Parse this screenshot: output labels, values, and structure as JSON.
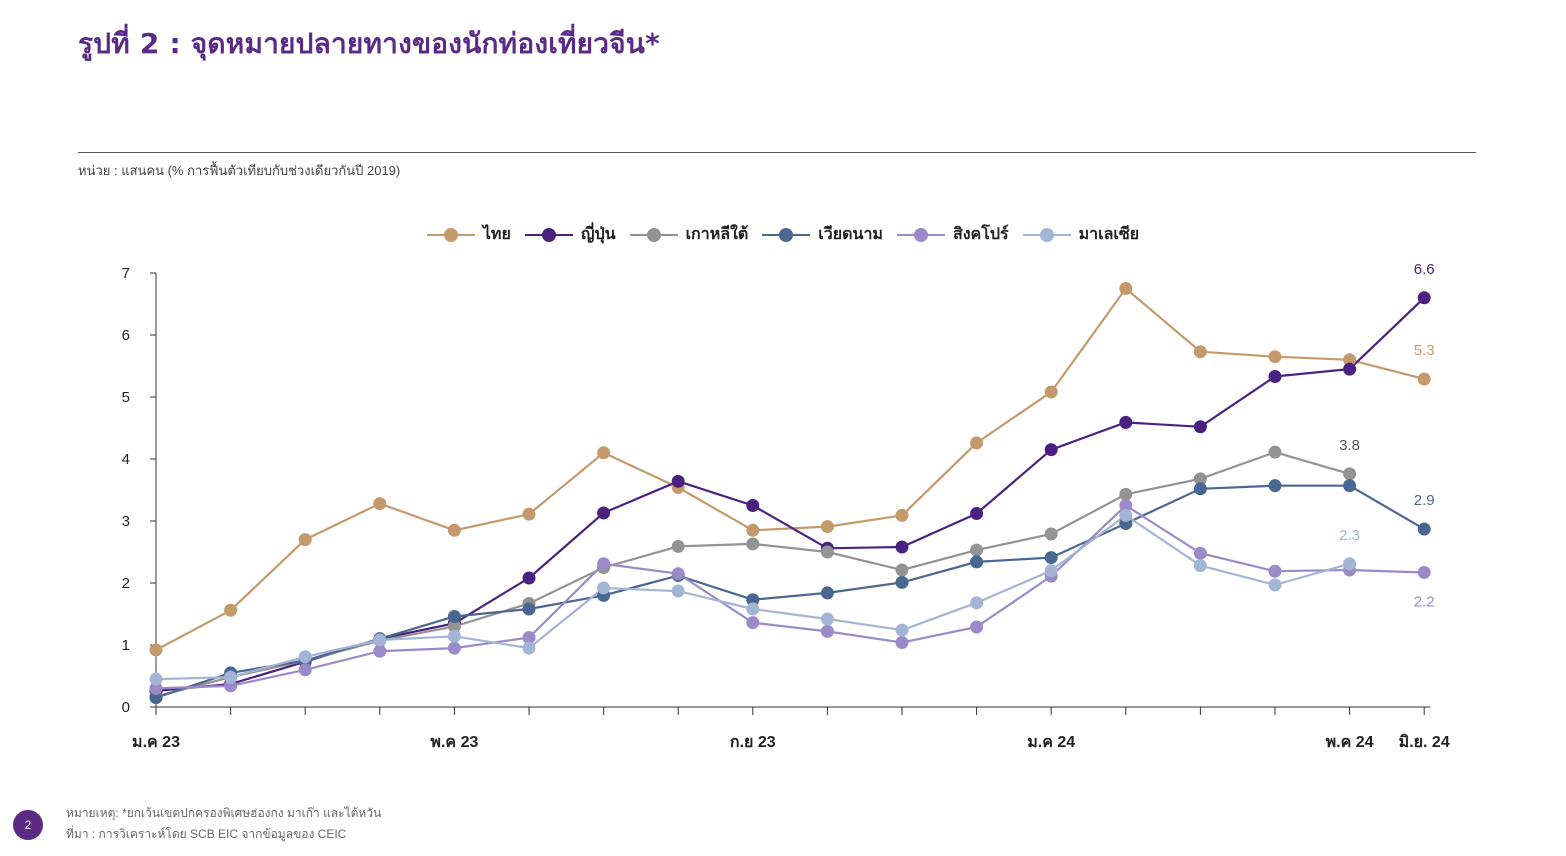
{
  "title": "รูปที่ 2 : จุดหมายปลายทางของนักท่องเที่ยวจีน*",
  "unit_label": "หน่วย : แสนคน (% การฟื้นตัวเทียบกับช่วงเดียวกันปี 2019)",
  "page_number": "2",
  "footnote": "หมายเหตุ: *ยกเว้นเขตปกครองพิเศษฮ่องกง มาเก๊า และไต้หวัน",
  "source": "ที่มา : การวิเคราะห์โดย SCB EIC จากข้อมูลของ CEIC",
  "chart_data": {
    "type": "line",
    "title": "",
    "xlabel": "",
    "ylabel": "",
    "ylim": [
      0,
      7
    ],
    "yticks": [
      "0",
      "1",
      "2",
      "3",
      "4",
      "5",
      "6",
      "7"
    ],
    "grid": false,
    "legend_position": "top",
    "x": [
      "2023-01",
      "2023-02",
      "2023-03",
      "2023-04",
      "2023-05",
      "2023-06",
      "2023-07",
      "2023-08",
      "2023-09",
      "2023-10",
      "2023-11",
      "2023-12",
      "2024-01",
      "2024-02",
      "2024-03",
      "2024-04",
      "2024-05",
      "2024-06"
    ],
    "x_tick_labels": [
      {
        "index": 0,
        "label": "ม.ค 23"
      },
      {
        "index": 4,
        "label": "พ.ค 23"
      },
      {
        "index": 8,
        "label": "ก.ย 23"
      },
      {
        "index": 12,
        "label": "ม.ค 24"
      },
      {
        "index": 16,
        "label": "พ.ค 24"
      },
      {
        "index": 17,
        "label": "มิ.ย. 24"
      }
    ],
    "series": [
      {
        "name": "ไทย",
        "color": "#c49a6c",
        "values": [
          0.92,
          1.56,
          2.7,
          3.28,
          2.85,
          3.11,
          4.1,
          3.54,
          2.85,
          2.91,
          3.09,
          4.26,
          5.08,
          6.75,
          5.73,
          5.65,
          5.6,
          5.29
        ]
      },
      {
        "name": "ญี่ปุ่น",
        "color": "#4a2180",
        "values": [
          0.26,
          0.37,
          0.73,
          1.1,
          1.35,
          2.08,
          3.13,
          3.64,
          3.25,
          2.56,
          2.58,
          3.12,
          4.15,
          4.59,
          4.52,
          5.33,
          5.45,
          6.6
        ]
      },
      {
        "name": "เกาหลีใต้",
        "color": "#939393",
        "values": [
          0.17,
          0.48,
          0.75,
          1.07,
          1.3,
          1.67,
          2.25,
          2.59,
          2.63,
          2.5,
          2.21,
          2.53,
          2.79,
          3.43,
          3.68,
          4.11,
          3.76,
          null
        ]
      },
      {
        "name": "เวียดนาม",
        "color": "#4a6791",
        "values": [
          0.15,
          0.55,
          0.75,
          1.1,
          1.46,
          1.58,
          1.8,
          2.12,
          1.73,
          1.84,
          2.01,
          2.34,
          2.41,
          2.96,
          3.52,
          3.57,
          3.57,
          2.87
        ]
      },
      {
        "name": "สิงคโปร์",
        "color": "#9b8ac8",
        "values": [
          0.3,
          0.34,
          0.6,
          0.9,
          0.95,
          1.12,
          2.31,
          2.15,
          1.36,
          1.22,
          1.04,
          1.29,
          2.11,
          3.25,
          2.48,
          2.19,
          2.21,
          2.17
        ]
      },
      {
        "name": "มาเลเซีย",
        "color": "#a3b5d5",
        "values": [
          0.45,
          0.48,
          0.81,
          1.08,
          1.14,
          0.95,
          1.92,
          1.87,
          1.58,
          1.42,
          1.24,
          1.68,
          2.2,
          3.09,
          2.28,
          1.97,
          2.31,
          null
        ]
      }
    ],
    "annotations": [
      {
        "series": "ญี่ปุ่น",
        "index": 17,
        "text": "6.6",
        "color": "#4a2180"
      },
      {
        "series": "ไทย",
        "index": 17,
        "text": "5.3",
        "color": "#c49a6c"
      },
      {
        "series": "เกาหลีใต้",
        "index": 16,
        "text": "3.8",
        "color": "#555555"
      },
      {
        "series": "เวียดนาม",
        "index": 17,
        "text": "2.9",
        "color": "#4a6791"
      },
      {
        "series": "มาเลเซีย",
        "index": 16,
        "text": "2.3",
        "color": "#a3b5d5"
      },
      {
        "series": "สิงคโปร์",
        "index": 17,
        "text": "2.2",
        "color": "#9b8ac8"
      }
    ]
  }
}
